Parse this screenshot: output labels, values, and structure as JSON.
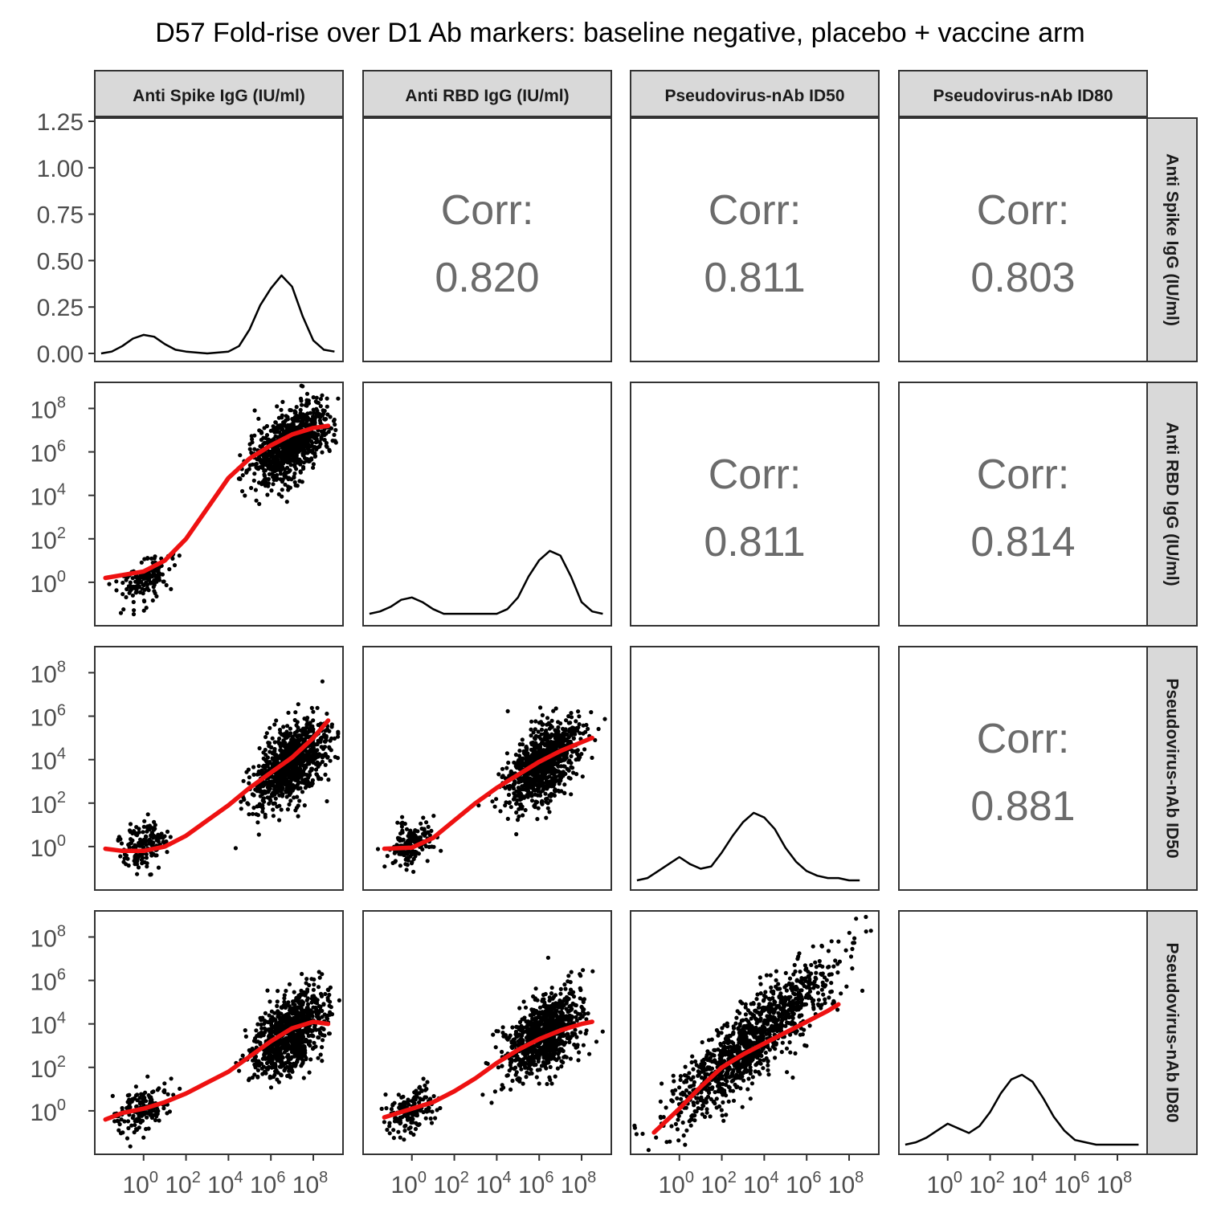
{
  "chart_data": {
    "type": "scatter",
    "title": "D57 Fold-rise over D1 Ab markers: baseline negative, placebo + vaccine arm",
    "variables": [
      "Anti Spike IgG (IU/ml)",
      "Anti RBD IgG (IU/ml)",
      "Pseudovirus-nAb ID50",
      "Pseudovirus-nAb ID80"
    ],
    "density_axis": {
      "ylim": [
        0,
        1.25
      ],
      "ticks": [
        "0.00",
        "0.25",
        "0.50",
        "0.75",
        "1.00",
        "1.25"
      ]
    },
    "log_axis": {
      "scale": "log10",
      "exponents": [
        0,
        2,
        4,
        6,
        8
      ],
      "base_label": "10"
    },
    "corr_label": "Corr:",
    "correlations": [
      {
        "row": 0,
        "col": 1,
        "value": "0.820"
      },
      {
        "row": 0,
        "col": 2,
        "value": "0.811"
      },
      {
        "row": 0,
        "col": 3,
        "value": "0.803"
      },
      {
        "row": 1,
        "col": 2,
        "value": "0.811"
      },
      {
        "row": 1,
        "col": 3,
        "value": "0.814"
      },
      {
        "row": 2,
        "col": 3,
        "value": "0.881"
      }
    ],
    "densities": [
      {
        "var": 0,
        "x": [
          -2,
          -1.5,
          -1,
          -0.5,
          0,
          0.5,
          1,
          1.5,
          2,
          3,
          4,
          4.5,
          5,
          5.5,
          6,
          6.5,
          7,
          7.5,
          8,
          8.5,
          9
        ],
        "y": [
          0.0,
          0.01,
          0.04,
          0.08,
          0.1,
          0.09,
          0.05,
          0.02,
          0.01,
          0.0,
          0.01,
          0.04,
          0.13,
          0.26,
          0.35,
          0.42,
          0.36,
          0.2,
          0.07,
          0.02,
          0.01
        ]
      },
      {
        "var": 1,
        "x": [
          -2,
          -1.5,
          -1,
          -0.5,
          0,
          0.5,
          1,
          1.5,
          2,
          3,
          4,
          4.5,
          5,
          5.5,
          6,
          6.5,
          7,
          7.5,
          8,
          8.5,
          9
        ],
        "y": [
          0.01,
          0.02,
          0.04,
          0.07,
          0.08,
          0.06,
          0.03,
          0.01,
          0.01,
          0.01,
          0.01,
          0.03,
          0.08,
          0.17,
          0.24,
          0.28,
          0.26,
          0.17,
          0.06,
          0.02,
          0.01
        ]
      },
      {
        "var": 2,
        "x": [
          -2,
          -1.5,
          -1,
          -0.5,
          0,
          0.5,
          1,
          1.5,
          2,
          2.5,
          3,
          3.5,
          4,
          4.5,
          5,
          5.5,
          6,
          6.5,
          7,
          7.5,
          8,
          8.5
        ],
        "y": [
          0.0,
          0.01,
          0.04,
          0.07,
          0.1,
          0.07,
          0.05,
          0.06,
          0.12,
          0.19,
          0.25,
          0.29,
          0.27,
          0.22,
          0.14,
          0.08,
          0.04,
          0.02,
          0.01,
          0.01,
          0.0,
          0.0
        ]
      },
      {
        "var": 3,
        "x": [
          -2,
          -1.5,
          -1,
          -0.5,
          0,
          0.5,
          1,
          1.5,
          2,
          2.5,
          3,
          3.5,
          4,
          4.5,
          5,
          5.5,
          6,
          6.5,
          7,
          7.5,
          8,
          8.5,
          9
        ],
        "y": [
          0.0,
          0.01,
          0.03,
          0.06,
          0.09,
          0.07,
          0.05,
          0.08,
          0.14,
          0.22,
          0.28,
          0.3,
          0.27,
          0.2,
          0.12,
          0.06,
          0.02,
          0.01,
          0.0,
          0.0,
          0.0,
          0.0,
          0.0
        ]
      }
    ],
    "scatter_panels": [
      {
        "row": 1,
        "col": 0,
        "clusters": [
          {
            "mx": 0,
            "my": 0.1,
            "sx": 0.6,
            "sy": 0.5,
            "r": 0.4,
            "n": 150
          },
          {
            "mx": 6.9,
            "my": 6.3,
            "sx": 0.9,
            "sy": 0.9,
            "r": 0.55,
            "n": 900
          }
        ],
        "smooth": [
          [
            -1.8,
            0.2
          ],
          [
            0,
            0.5
          ],
          [
            1,
            1.0
          ],
          [
            2,
            2.0
          ],
          [
            3,
            3.4
          ],
          [
            4,
            4.8
          ],
          [
            5,
            5.7
          ],
          [
            6,
            6.3
          ],
          [
            7,
            6.8
          ],
          [
            8,
            7.1
          ],
          [
            8.7,
            7.2
          ]
        ]
      },
      {
        "row": 2,
        "col": 0,
        "clusters": [
          {
            "mx": 0,
            "my": 0.1,
            "sx": 0.6,
            "sy": 0.55,
            "r": 0.3,
            "n": 150
          },
          {
            "mx": 6.9,
            "my": 3.8,
            "sx": 0.9,
            "sy": 1.0,
            "r": 0.55,
            "n": 900
          }
        ],
        "smooth": [
          [
            -1.8,
            -0.1
          ],
          [
            -1,
            -0.2
          ],
          [
            0,
            -0.2
          ],
          [
            1,
            0.0
          ],
          [
            2,
            0.5
          ],
          [
            3,
            1.2
          ],
          [
            4,
            1.9
          ],
          [
            5,
            2.7
          ],
          [
            6,
            3.4
          ],
          [
            7,
            4.1
          ],
          [
            8,
            5.0
          ],
          [
            8.7,
            5.8
          ]
        ]
      },
      {
        "row": 2,
        "col": 1,
        "clusters": [
          {
            "mx": 0,
            "my": 0.1,
            "sx": 0.6,
            "sy": 0.55,
            "r": 0.3,
            "n": 150
          },
          {
            "mx": 6.2,
            "my": 3.8,
            "sx": 0.9,
            "sy": 1.0,
            "r": 0.55,
            "n": 900
          }
        ],
        "smooth": [
          [
            -1.3,
            -0.1
          ],
          [
            0,
            -0.05
          ],
          [
            1,
            0.4
          ],
          [
            2,
            1.2
          ],
          [
            3,
            2.0
          ],
          [
            4,
            2.7
          ],
          [
            5,
            3.3
          ],
          [
            6,
            3.9
          ],
          [
            7,
            4.4
          ],
          [
            8,
            4.8
          ],
          [
            8.5,
            5.0
          ]
        ]
      },
      {
        "row": 3,
        "col": 0,
        "clusters": [
          {
            "mx": 0,
            "my": 0.1,
            "sx": 0.6,
            "sy": 0.55,
            "r": 0.3,
            "n": 150
          },
          {
            "mx": 6.9,
            "my": 3.5,
            "sx": 0.9,
            "sy": 0.95,
            "r": 0.5,
            "n": 900
          }
        ],
        "smooth": [
          [
            -1.8,
            -0.4
          ],
          [
            -1,
            -0.1
          ],
          [
            0,
            0.1
          ],
          [
            1,
            0.4
          ],
          [
            2,
            0.8
          ],
          [
            3,
            1.3
          ],
          [
            4,
            1.8
          ],
          [
            5,
            2.5
          ],
          [
            6,
            3.2
          ],
          [
            7,
            3.8
          ],
          [
            8,
            4.1
          ],
          [
            8.7,
            4.0
          ]
        ]
      },
      {
        "row": 3,
        "col": 1,
        "clusters": [
          {
            "mx": 0,
            "my": 0.1,
            "sx": 0.6,
            "sy": 0.55,
            "r": 0.3,
            "n": 150
          },
          {
            "mx": 6.2,
            "my": 3.5,
            "sx": 0.9,
            "sy": 0.95,
            "r": 0.5,
            "n": 900
          }
        ],
        "smooth": [
          [
            -1.3,
            -0.3
          ],
          [
            0,
            0.1
          ],
          [
            1,
            0.4
          ],
          [
            2,
            0.9
          ],
          [
            3,
            1.5
          ],
          [
            4,
            2.2
          ],
          [
            5,
            2.8
          ],
          [
            6,
            3.3
          ],
          [
            7,
            3.7
          ],
          [
            8,
            4.0
          ],
          [
            8.5,
            4.1
          ]
        ]
      },
      {
        "row": 3,
        "col": 2,
        "clusters": [
          {
            "mx": 3.5,
            "my": 3.3,
            "sx": 1.9,
            "sy": 1.8,
            "r": 0.88,
            "n": 1100
          }
        ],
        "smooth": [
          [
            -1.2,
            -1.0
          ],
          [
            0,
            0.1
          ],
          [
            1,
            1.1
          ],
          [
            2,
            2.0
          ],
          [
            3,
            2.6
          ],
          [
            4,
            3.1
          ],
          [
            5,
            3.6
          ],
          [
            6,
            4.1
          ],
          [
            7,
            4.6
          ],
          [
            7.5,
            4.9
          ]
        ]
      }
    ]
  }
}
